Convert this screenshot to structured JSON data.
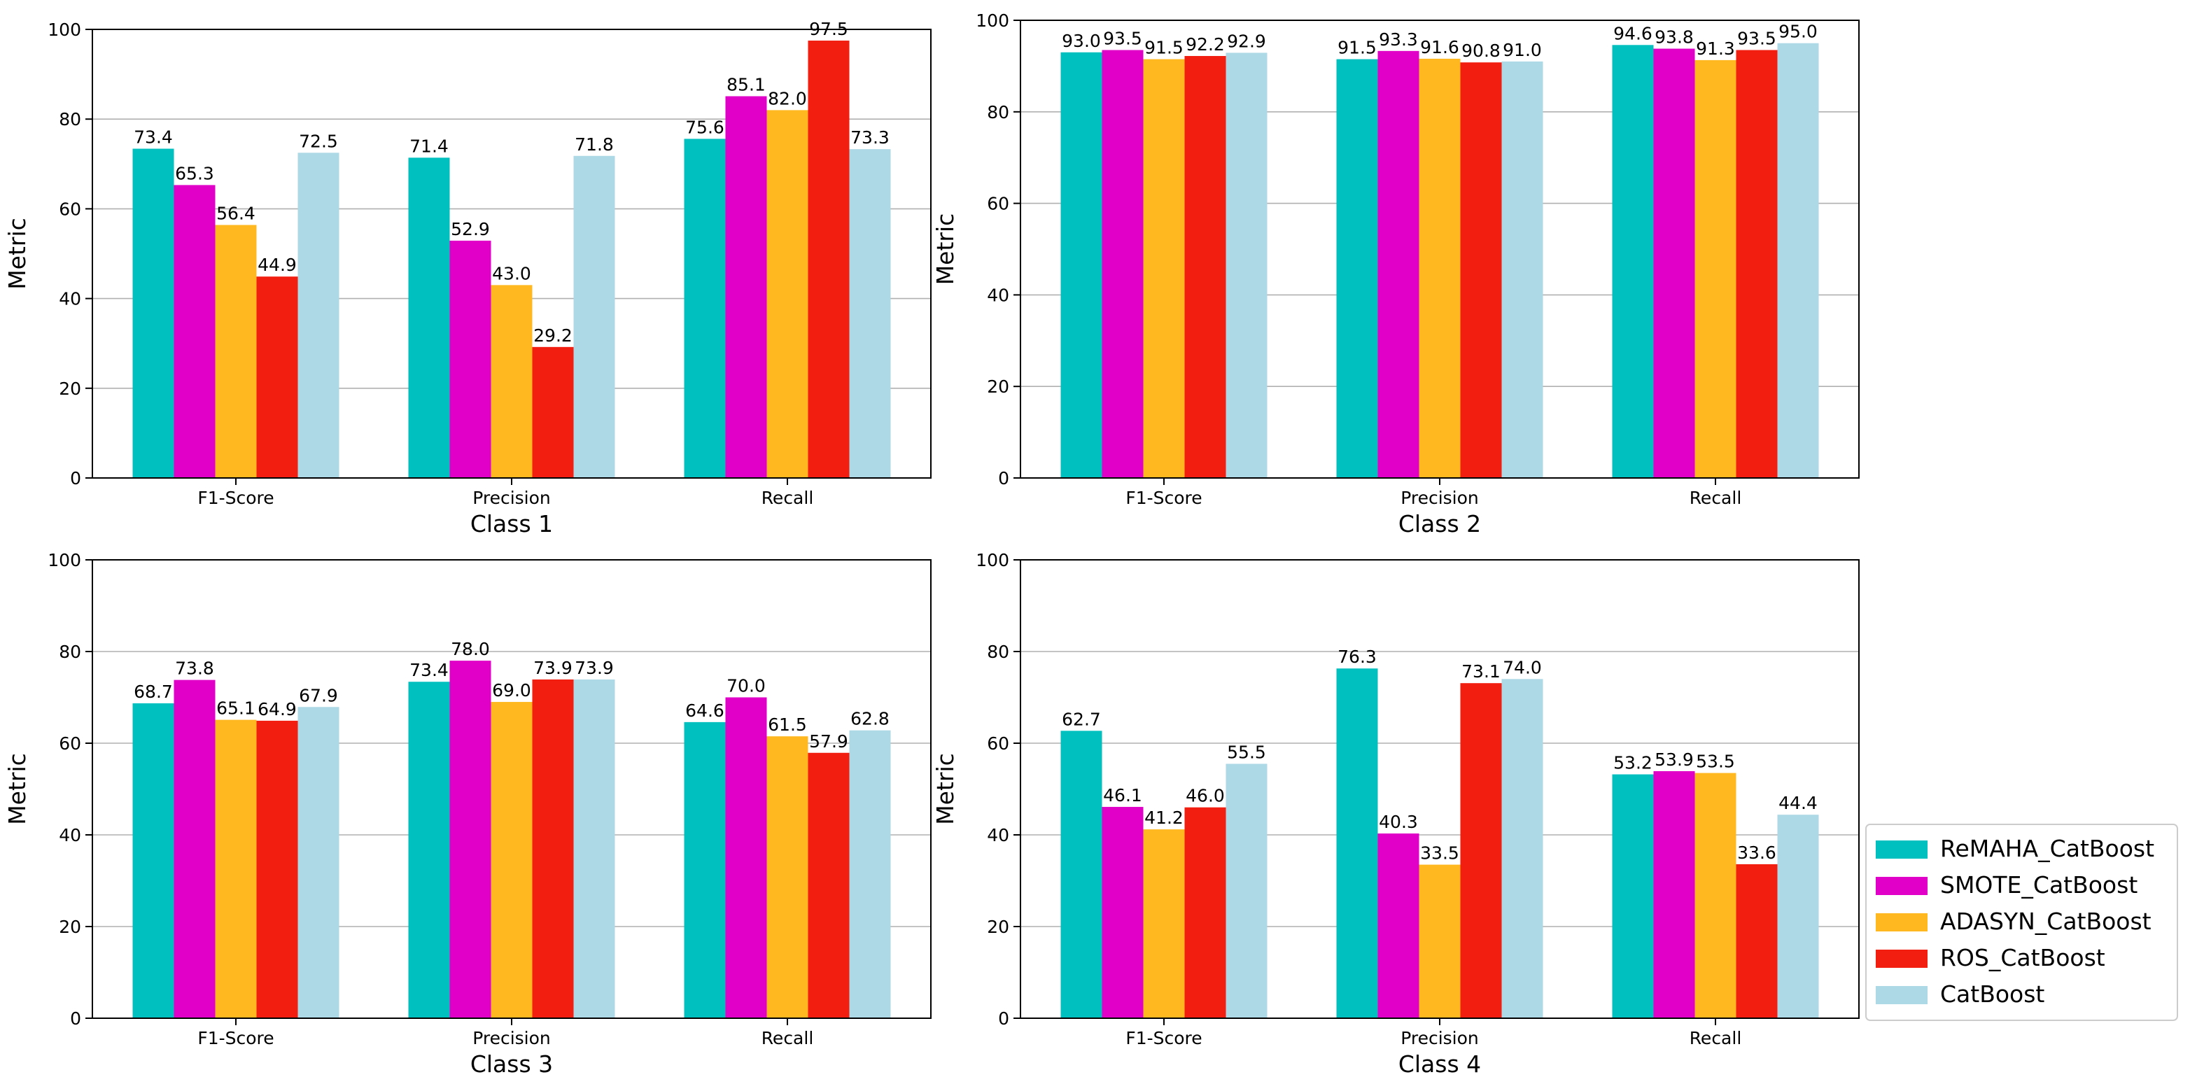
{
  "legend": {
    "entries": [
      {
        "label": "ReMAHA_CatBoost",
        "color": "#00BFBF"
      },
      {
        "label": "SMOTE_CatBoost",
        "color": "#E000C8"
      },
      {
        "label": "ADASYN_CatBoost",
        "color": "#FFB81F"
      },
      {
        "label": "ROS_CatBoost",
        "color": "#F21E10"
      },
      {
        "label": "CatBoost",
        "color": "#ADD8E6"
      }
    ]
  },
  "chart_data": [
    {
      "type": "bar",
      "title": "Class 1",
      "xlabel": "Class 1",
      "ylabel": "Metric",
      "categories": [
        "F1-Score",
        "Precision",
        "Recall"
      ],
      "ylim": [
        0,
        100
      ],
      "yticks": [
        "0",
        "20",
        "40",
        "60",
        "80",
        "100"
      ],
      "grid": "horizontal",
      "series": [
        {
          "name": "ReMAHA_CatBoost",
          "values": [
            73.4,
            71.4,
            75.6
          ],
          "labels": [
            "73.4",
            "71.4",
            "75.6"
          ]
        },
        {
          "name": "SMOTE_CatBoost",
          "values": [
            65.3,
            52.9,
            85.1
          ],
          "labels": [
            "65.3",
            "52.9",
            "85.1"
          ]
        },
        {
          "name": "ADASYN_CatBoost",
          "values": [
            56.4,
            43.0,
            82.0
          ],
          "labels": [
            "56.4",
            "43.0",
            "82.0"
          ]
        },
        {
          "name": "ROS_CatBoost",
          "values": [
            44.9,
            29.2,
            97.5
          ],
          "labels": [
            "44.9",
            "29.2",
            "97.5"
          ]
        },
        {
          "name": "CatBoost",
          "values": [
            72.5,
            71.8,
            73.3
          ],
          "labels": [
            "72.5",
            "71.8",
            "73.3"
          ]
        }
      ]
    },
    {
      "type": "bar",
      "title": "Class 2",
      "xlabel": "Class 2",
      "ylabel": "Metric",
      "categories": [
        "F1-Score",
        "Precision",
        "Recall"
      ],
      "ylim": [
        0,
        100
      ],
      "yticks": [
        "0",
        "20",
        "40",
        "60",
        "80",
        "100"
      ],
      "grid": "horizontal",
      "series": [
        {
          "name": "ReMAHA_CatBoost",
          "values": [
            93.0,
            91.5,
            94.6
          ],
          "labels": [
            "93.0",
            "91.5",
            "94.6"
          ]
        },
        {
          "name": "SMOTE_CatBoost",
          "values": [
            93.5,
            93.3,
            93.8
          ],
          "labels": [
            "93.5",
            "93.3",
            "93.8"
          ]
        },
        {
          "name": "ADASYN_CatBoost",
          "values": [
            91.5,
            91.6,
            91.3
          ],
          "labels": [
            "91.5",
            "91.6",
            "91.3"
          ]
        },
        {
          "name": "ROS_CatBoost",
          "values": [
            92.2,
            90.8,
            93.5
          ],
          "labels": [
            "92.2",
            "90.8",
            "93.5"
          ]
        },
        {
          "name": "CatBoost",
          "values": [
            92.9,
            91.0,
            95.0
          ],
          "labels": [
            "92.9",
            "91.0",
            "95.0"
          ]
        }
      ]
    },
    {
      "type": "bar",
      "title": "Class 3",
      "xlabel": "Class 3",
      "ylabel": "Metric",
      "categories": [
        "F1-Score",
        "Precision",
        "Recall"
      ],
      "ylim": [
        0,
        100
      ],
      "yticks": [
        "0",
        "20",
        "40",
        "60",
        "80",
        "100"
      ],
      "grid": "horizontal",
      "series": [
        {
          "name": "ReMAHA_CatBoost",
          "values": [
            68.7,
            73.4,
            64.6
          ],
          "labels": [
            "68.7",
            "73.4",
            "64.6"
          ]
        },
        {
          "name": "SMOTE_CatBoost",
          "values": [
            73.8,
            78.0,
            70.0
          ],
          "labels": [
            "73.8",
            "78.0",
            "70.0"
          ]
        },
        {
          "name": "ADASYN_CatBoost",
          "values": [
            65.1,
            69.0,
            61.5
          ],
          "labels": [
            "65.1",
            "69.0",
            "61.5"
          ]
        },
        {
          "name": "ROS_CatBoost",
          "values": [
            64.9,
            73.9,
            57.9
          ],
          "labels": [
            "64.9",
            "73.9",
            "57.9"
          ]
        },
        {
          "name": "CatBoost",
          "values": [
            67.9,
            73.9,
            62.8
          ],
          "labels": [
            "67.9",
            "73.9",
            "62.8"
          ]
        }
      ]
    },
    {
      "type": "bar",
      "title": "Class 4",
      "xlabel": "Class 4",
      "ylabel": "Metric",
      "categories": [
        "F1-Score",
        "Precision",
        "Recall"
      ],
      "ylim": [
        0,
        100
      ],
      "yticks": [
        "0",
        "20",
        "40",
        "60",
        "80",
        "100"
      ],
      "grid": "horizontal",
      "series": [
        {
          "name": "ReMAHA_CatBoost",
          "values": [
            62.7,
            76.3,
            53.2
          ],
          "labels": [
            "62.7",
            "76.3",
            "53.2"
          ]
        },
        {
          "name": "SMOTE_CatBoost",
          "values": [
            46.1,
            40.3,
            53.9
          ],
          "labels": [
            "46.1",
            "40.3",
            "53.9"
          ]
        },
        {
          "name": "ADASYN_CatBoost",
          "values": [
            41.2,
            33.5,
            53.5
          ],
          "labels": [
            "41.2",
            "33.5",
            "53.5"
          ]
        },
        {
          "name": "ROS_CatBoost",
          "values": [
            46.0,
            73.1,
            33.6
          ],
          "labels": [
            "46.0",
            "73.1",
            "33.6"
          ]
        },
        {
          "name": "CatBoost",
          "values": [
            55.5,
            74.0,
            44.4
          ],
          "labels": [
            "55.5",
            "74.0",
            "44.4"
          ]
        }
      ]
    }
  ]
}
